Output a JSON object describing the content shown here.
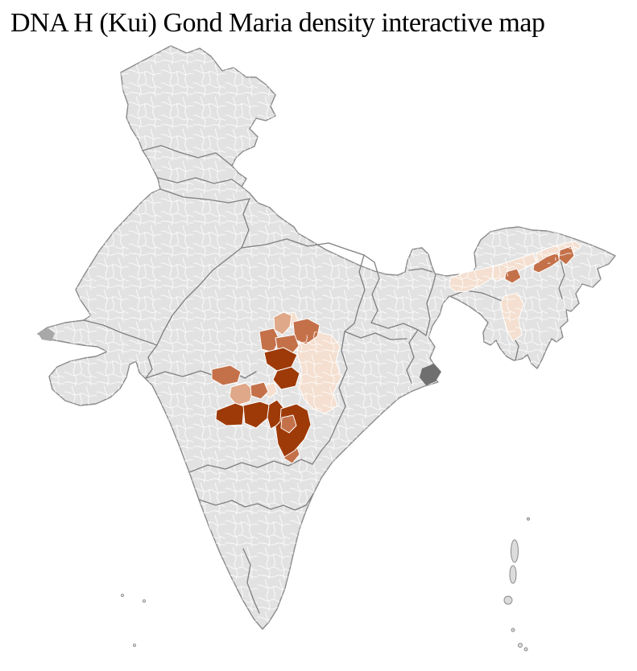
{
  "title": "DNA H (Kui) Gond Maria density interactive map",
  "map": {
    "kind": "india-district-choropleth",
    "colors": {
      "sea": "#ffffff",
      "district_base": "#e2e2e2",
      "district_border": "#ffffff",
      "state_border": "#7e7e7e",
      "coast_outline": "#8a8a8a",
      "delta_marsh": "#6f6f6f",
      "kutch_marsh": "#a8a8a8",
      "island_fill": "#dcdcdc"
    },
    "density_levels": {
      "1": "#f4dfd0",
      "2": "#dfa888",
      "3": "#c4714a",
      "4": "#9e3a08"
    },
    "regions": [
      {
        "id": "c18",
        "cluster": "central-india",
        "level": 1
      },
      {
        "id": "c02",
        "cluster": "central-india",
        "level": 1
      },
      {
        "id": "c11",
        "cluster": "central-india",
        "level": 1
      },
      {
        "id": "n01",
        "cluster": "assam-valley",
        "level": 1
      },
      {
        "id": "n02",
        "cluster": "assam-valley",
        "level": 1
      },
      {
        "id": "n03",
        "cluster": "assam-valley",
        "level": 1
      },
      {
        "id": "n04",
        "cluster": "assam-valley",
        "level": 1
      },
      {
        "id": "c01",
        "cluster": "central-india",
        "level": 2
      },
      {
        "id": "c09",
        "cluster": "central-india",
        "level": 2
      },
      {
        "id": "c03",
        "cluster": "central-india",
        "level": 3
      },
      {
        "id": "c04",
        "cluster": "central-india",
        "level": 3
      },
      {
        "id": "c05",
        "cluster": "central-india",
        "level": 3
      },
      {
        "id": "c08",
        "cluster": "central-india",
        "level": 3
      },
      {
        "id": "c10",
        "cluster": "central-india",
        "level": 3
      },
      {
        "id": "c17",
        "cluster": "central-india",
        "level": 3
      },
      {
        "id": "n05",
        "cluster": "assam-valley",
        "level": 3
      },
      {
        "id": "n06",
        "cluster": "assam-valley",
        "level": 3
      },
      {
        "id": "n07",
        "cluster": "assam-valley",
        "level": 3
      },
      {
        "id": "c06",
        "cluster": "central-india",
        "level": 4
      },
      {
        "id": "c07",
        "cluster": "central-india",
        "level": 4
      },
      {
        "id": "c12",
        "cluster": "central-india",
        "level": 4
      },
      {
        "id": "c13",
        "cluster": "central-india",
        "level": 4
      },
      {
        "id": "c14",
        "cluster": "central-india",
        "level": 4
      },
      {
        "id": "c15",
        "cluster": "central-india",
        "level": 4
      },
      {
        "id": "c16",
        "cluster": "central-india",
        "level": 3
      }
    ]
  }
}
